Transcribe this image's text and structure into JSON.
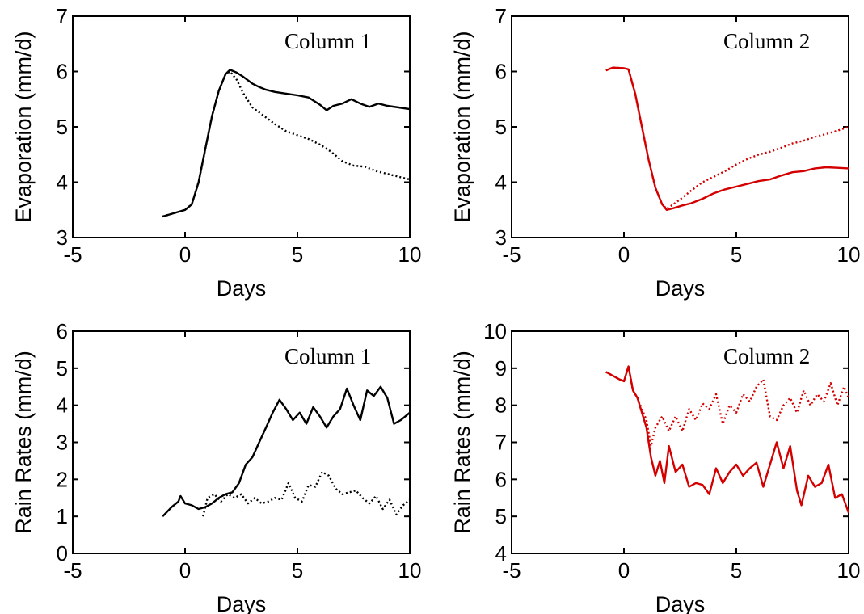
{
  "chart_data": [
    {
      "type": "line",
      "title": "Column 1",
      "xlabel": "Days",
      "ylabel": "Evaporation (mm/d)",
      "xlim": [
        -5,
        10
      ],
      "ylim": [
        3,
        7
      ],
      "xticks": [
        "-5",
        "0",
        "5",
        "10"
      ],
      "yticks": [
        "3",
        "4",
        "5",
        "6",
        "7"
      ],
      "color": "#000000",
      "series": [
        {
          "style": "solid",
          "points": [
            [
              -1,
              3.38
            ],
            [
              -0.5,
              3.44
            ],
            [
              0,
              3.5
            ],
            [
              0.3,
              3.6
            ],
            [
              0.6,
              4.0
            ],
            [
              0.9,
              4.6
            ],
            [
              1.2,
              5.2
            ],
            [
              1.5,
              5.65
            ],
            [
              1.8,
              5.95
            ],
            [
              2.0,
              6.03
            ],
            [
              2.3,
              5.98
            ],
            [
              2.6,
              5.9
            ],
            [
              3.0,
              5.78
            ],
            [
              3.3,
              5.72
            ],
            [
              3.6,
              5.67
            ],
            [
              4.0,
              5.63
            ],
            [
              4.5,
              5.6
            ],
            [
              5.0,
              5.57
            ],
            [
              5.5,
              5.53
            ],
            [
              6.0,
              5.4
            ],
            [
              6.3,
              5.3
            ],
            [
              6.6,
              5.38
            ],
            [
              7.0,
              5.42
            ],
            [
              7.4,
              5.5
            ],
            [
              7.8,
              5.42
            ],
            [
              8.2,
              5.36
            ],
            [
              8.6,
              5.42
            ],
            [
              9.0,
              5.38
            ],
            [
              9.5,
              5.35
            ],
            [
              10,
              5.32
            ]
          ]
        },
        {
          "style": "dotted",
          "points": [
            [
              -1,
              3.38
            ],
            [
              -0.5,
              3.44
            ],
            [
              0,
              3.5
            ],
            [
              0.3,
              3.6
            ],
            [
              0.6,
              4.0
            ],
            [
              0.9,
              4.6
            ],
            [
              1.2,
              5.2
            ],
            [
              1.5,
              5.65
            ],
            [
              1.8,
              5.95
            ],
            [
              2.0,
              6.0
            ],
            [
              2.3,
              5.85
            ],
            [
              2.6,
              5.6
            ],
            [
              3.0,
              5.35
            ],
            [
              3.5,
              5.2
            ],
            [
              4.0,
              5.05
            ],
            [
              4.5,
              4.92
            ],
            [
              5.0,
              4.85
            ],
            [
              5.5,
              4.78
            ],
            [
              6.0,
              4.68
            ],
            [
              6.5,
              4.55
            ],
            [
              7.0,
              4.38
            ],
            [
              7.5,
              4.3
            ],
            [
              8.0,
              4.28
            ],
            [
              8.5,
              4.2
            ],
            [
              9.0,
              4.15
            ],
            [
              9.5,
              4.1
            ],
            [
              10,
              4.05
            ]
          ]
        }
      ]
    },
    {
      "type": "line",
      "title": "Column 2",
      "xlabel": "Days",
      "ylabel": "Evaporation (mm/d)",
      "xlim": [
        -5,
        10
      ],
      "ylim": [
        3,
        7
      ],
      "xticks": [
        "-5",
        "0",
        "5",
        "10"
      ],
      "yticks": [
        "3",
        "4",
        "5",
        "6",
        "7"
      ],
      "color": "#d40000",
      "series": [
        {
          "style": "solid",
          "points": [
            [
              -0.8,
              6.02
            ],
            [
              -0.5,
              6.07
            ],
            [
              0,
              6.06
            ],
            [
              0.2,
              6.04
            ],
            [
              0.5,
              5.6
            ],
            [
              0.8,
              5.0
            ],
            [
              1.1,
              4.4
            ],
            [
              1.4,
              3.9
            ],
            [
              1.7,
              3.6
            ],
            [
              1.9,
              3.5
            ],
            [
              2.2,
              3.53
            ],
            [
              2.6,
              3.58
            ],
            [
              3.0,
              3.62
            ],
            [
              3.5,
              3.7
            ],
            [
              4.0,
              3.8
            ],
            [
              4.5,
              3.87
            ],
            [
              5.0,
              3.92
            ],
            [
              5.5,
              3.97
            ],
            [
              6.0,
              4.02
            ],
            [
              6.5,
              4.05
            ],
            [
              7.0,
              4.12
            ],
            [
              7.5,
              4.18
            ],
            [
              8.0,
              4.2
            ],
            [
              8.5,
              4.25
            ],
            [
              9.0,
              4.27
            ],
            [
              9.5,
              4.26
            ],
            [
              10,
              4.25
            ]
          ]
        },
        {
          "style": "dotted",
          "points": [
            [
              -0.8,
              6.02
            ],
            [
              -0.5,
              6.07
            ],
            [
              0,
              6.06
            ],
            [
              0.2,
              6.04
            ],
            [
              0.5,
              5.6
            ],
            [
              0.8,
              5.0
            ],
            [
              1.1,
              4.4
            ],
            [
              1.4,
              3.9
            ],
            [
              1.7,
              3.6
            ],
            [
              1.9,
              3.52
            ],
            [
              2.2,
              3.6
            ],
            [
              2.6,
              3.72
            ],
            [
              3.0,
              3.85
            ],
            [
              3.5,
              4.0
            ],
            [
              4.0,
              4.1
            ],
            [
              4.5,
              4.2
            ],
            [
              5.0,
              4.32
            ],
            [
              5.5,
              4.42
            ],
            [
              6.0,
              4.5
            ],
            [
              6.5,
              4.55
            ],
            [
              7.0,
              4.62
            ],
            [
              7.5,
              4.7
            ],
            [
              8.0,
              4.75
            ],
            [
              8.5,
              4.82
            ],
            [
              9.0,
              4.87
            ],
            [
              9.5,
              4.93
            ],
            [
              10,
              5.0
            ]
          ]
        }
      ]
    },
    {
      "type": "line",
      "title": "Column 1",
      "xlabel": "Days",
      "ylabel": "Rain Rates (mm/d)",
      "xlim": [
        -5,
        10
      ],
      "ylim": [
        0,
        6
      ],
      "xticks": [
        "-5",
        "0",
        "5",
        "10"
      ],
      "yticks": [
        "0",
        "1",
        "2",
        "3",
        "4",
        "5",
        "6"
      ],
      "color": "#000000",
      "series": [
        {
          "style": "solid",
          "points": [
            [
              -1,
              1.0
            ],
            [
              -0.6,
              1.25
            ],
            [
              -0.3,
              1.4
            ],
            [
              -0.2,
              1.55
            ],
            [
              0,
              1.35
            ],
            [
              0.3,
              1.3
            ],
            [
              0.6,
              1.2
            ],
            [
              0.9,
              1.25
            ],
            [
              1.2,
              1.35
            ],
            [
              1.5,
              1.5
            ],
            [
              1.8,
              1.6
            ],
            [
              2.1,
              1.65
            ],
            [
              2.4,
              1.9
            ],
            [
              2.7,
              2.4
            ],
            [
              3.0,
              2.6
            ],
            [
              3.3,
              3.0
            ],
            [
              3.6,
              3.4
            ],
            [
              3.9,
              3.8
            ],
            [
              4.2,
              4.15
            ],
            [
              4.5,
              3.9
            ],
            [
              4.8,
              3.6
            ],
            [
              5.1,
              3.8
            ],
            [
              5.4,
              3.5
            ],
            [
              5.7,
              3.95
            ],
            [
              6.0,
              3.7
            ],
            [
              6.3,
              3.4
            ],
            [
              6.6,
              3.7
            ],
            [
              6.9,
              3.9
            ],
            [
              7.2,
              4.45
            ],
            [
              7.5,
              4.0
            ],
            [
              7.8,
              3.6
            ],
            [
              8.1,
              4.4
            ],
            [
              8.4,
              4.25
            ],
            [
              8.7,
              4.5
            ],
            [
              9.0,
              4.2
            ],
            [
              9.3,
              3.5
            ],
            [
              9.6,
              3.6
            ],
            [
              10,
              3.8
            ]
          ]
        },
        {
          "style": "dotted",
          "points": [
            [
              0.8,
              1.0
            ],
            [
              1.0,
              1.5
            ],
            [
              1.3,
              1.6
            ],
            [
              1.6,
              1.4
            ],
            [
              1.9,
              1.6
            ],
            [
              2.2,
              1.5
            ],
            [
              2.5,
              1.6
            ],
            [
              2.8,
              1.35
            ],
            [
              3.1,
              1.5
            ],
            [
              3.4,
              1.35
            ],
            [
              3.7,
              1.4
            ],
            [
              4.0,
              1.5
            ],
            [
              4.3,
              1.45
            ],
            [
              4.6,
              1.9
            ],
            [
              4.9,
              1.5
            ],
            [
              5.2,
              1.4
            ],
            [
              5.5,
              1.85
            ],
            [
              5.8,
              1.8
            ],
            [
              6.1,
              2.2
            ],
            [
              6.4,
              2.1
            ],
            [
              6.7,
              1.75
            ],
            [
              7.0,
              1.6
            ],
            [
              7.3,
              1.65
            ],
            [
              7.6,
              1.7
            ],
            [
              7.9,
              1.5
            ],
            [
              8.2,
              1.35
            ],
            [
              8.5,
              1.55
            ],
            [
              8.8,
              1.2
            ],
            [
              9.1,
              1.45
            ],
            [
              9.4,
              1.05
            ],
            [
              9.7,
              1.3
            ],
            [
              10,
              1.45
            ]
          ]
        }
      ]
    },
    {
      "type": "line",
      "title": "Column 2",
      "xlabel": "Days",
      "ylabel": "Rain Rates (mm/d)",
      "xlim": [
        -5,
        10
      ],
      "ylim": [
        4,
        10
      ],
      "xticks": [
        "-5",
        "0",
        "5",
        "10"
      ],
      "yticks": [
        "4",
        "5",
        "6",
        "7",
        "8",
        "9",
        "10"
      ],
      "color": "#d40000",
      "series": [
        {
          "style": "solid",
          "points": [
            [
              -0.8,
              8.9
            ],
            [
              -0.5,
              8.8
            ],
            [
              -0.2,
              8.7
            ],
            [
              0,
              8.65
            ],
            [
              0.2,
              9.05
            ],
            [
              0.4,
              8.4
            ],
            [
              0.6,
              8.2
            ],
            [
              0.8,
              7.8
            ],
            [
              1.0,
              7.4
            ],
            [
              1.2,
              6.6
            ],
            [
              1.4,
              6.1
            ],
            [
              1.6,
              6.5
            ],
            [
              1.8,
              5.9
            ],
            [
              2.0,
              6.9
            ],
            [
              2.3,
              6.2
            ],
            [
              2.6,
              6.4
            ],
            [
              2.9,
              5.8
            ],
            [
              3.2,
              5.9
            ],
            [
              3.5,
              5.85
            ],
            [
              3.8,
              5.6
            ],
            [
              4.1,
              6.3
            ],
            [
              4.4,
              5.9
            ],
            [
              4.7,
              6.2
            ],
            [
              5.0,
              6.4
            ],
            [
              5.3,
              6.1
            ],
            [
              5.6,
              6.3
            ],
            [
              5.9,
              6.45
            ],
            [
              6.2,
              5.8
            ],
            [
              6.5,
              6.4
            ],
            [
              6.8,
              7.0
            ],
            [
              7.1,
              6.3
            ],
            [
              7.4,
              6.9
            ],
            [
              7.7,
              5.7
            ],
            [
              7.9,
              5.3
            ],
            [
              8.2,
              6.1
            ],
            [
              8.5,
              5.8
            ],
            [
              8.8,
              5.9
            ],
            [
              9.1,
              6.4
            ],
            [
              9.4,
              5.5
            ],
            [
              9.7,
              5.6
            ],
            [
              10,
              5.1
            ]
          ]
        },
        {
          "style": "dotted",
          "points": [
            [
              -0.8,
              8.9
            ],
            [
              -0.5,
              8.8
            ],
            [
              -0.2,
              8.7
            ],
            [
              0,
              8.65
            ],
            [
              0.2,
              9.05
            ],
            [
              0.4,
              8.4
            ],
            [
              0.6,
              8.2
            ],
            [
              0.8,
              7.9
            ],
            [
              1.0,
              7.6
            ],
            [
              1.2,
              6.9
            ],
            [
              1.4,
              7.4
            ],
            [
              1.7,
              7.7
            ],
            [
              2.0,
              7.3
            ],
            [
              2.3,
              7.7
            ],
            [
              2.6,
              7.3
            ],
            [
              2.9,
              7.9
            ],
            [
              3.2,
              7.6
            ],
            [
              3.5,
              8.05
            ],
            [
              3.8,
              7.9
            ],
            [
              4.1,
              8.3
            ],
            [
              4.4,
              7.5
            ],
            [
              4.7,
              8.0
            ],
            [
              5.0,
              7.8
            ],
            [
              5.3,
              8.3
            ],
            [
              5.6,
              8.1
            ],
            [
              5.9,
              8.5
            ],
            [
              6.2,
              8.7
            ],
            [
              6.5,
              7.7
            ],
            [
              6.8,
              7.6
            ],
            [
              7.1,
              8.0
            ],
            [
              7.4,
              8.2
            ],
            [
              7.7,
              7.8
            ],
            [
              8.0,
              8.4
            ],
            [
              8.3,
              8.0
            ],
            [
              8.6,
              8.3
            ],
            [
              8.9,
              8.1
            ],
            [
              9.2,
              8.6
            ],
            [
              9.5,
              8.0
            ],
            [
              9.8,
              8.5
            ],
            [
              10,
              8.2
            ]
          ]
        }
      ]
    }
  ]
}
